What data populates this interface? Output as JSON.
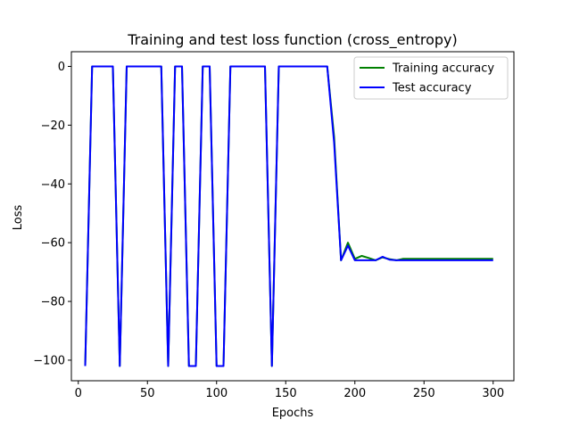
{
  "chart_data": {
    "type": "line",
    "title": "Training and test loss function (cross_entropy)",
    "xlabel": "Epochs",
    "ylabel": "Loss",
    "xlim": [
      -5,
      315
    ],
    "ylim": [
      -107,
      5
    ],
    "xticks": [
      0,
      50,
      100,
      150,
      200,
      250,
      300
    ],
    "xtick_labels": [
      "0",
      "50",
      "100",
      "150",
      "200",
      "250",
      "300"
    ],
    "yticks": [
      0,
      -20,
      -40,
      -60,
      -80,
      -100
    ],
    "ytick_labels": [
      "0",
      "−20",
      "−40",
      "−60",
      "−80",
      "−100"
    ],
    "grid": false,
    "legend_position": "top-right",
    "x": [
      5,
      10,
      15,
      20,
      25,
      30,
      35,
      40,
      45,
      50,
      55,
      60,
      65,
      70,
      75,
      80,
      85,
      90,
      95,
      100,
      105,
      110,
      115,
      120,
      125,
      130,
      135,
      140,
      145,
      150,
      155,
      160,
      165,
      170,
      175,
      180,
      185,
      190,
      195,
      200,
      205,
      210,
      215,
      220,
      225,
      230,
      235,
      240,
      245,
      250,
      255,
      260,
      265,
      270,
      275,
      280,
      285,
      290,
      295,
      300
    ],
    "series": [
      {
        "name": "Training accuracy",
        "color": "#008000",
        "values": [
          -102,
          0,
          0,
          0,
          0,
          -102,
          0,
          0,
          0,
          0,
          0,
          0,
          -102,
          0,
          0,
          -102,
          -102,
          0,
          0,
          -102,
          -102,
          0,
          0,
          0,
          0,
          0,
          0,
          -102,
          0,
          0,
          0,
          0,
          0,
          0,
          0,
          0,
          -24,
          -66,
          -60,
          -65.5,
          -64.5,
          -65.2,
          -66,
          -65,
          -65.6,
          -66,
          -65.5,
          -65.5,
          -65.5,
          -65.5,
          -65.5,
          -65.5,
          -65.5,
          -65.5,
          -65.5,
          -65.5,
          -65.5,
          -65.5,
          -65.5,
          -65.5
        ]
      },
      {
        "name": "Test accuracy",
        "color": "#0000ff",
        "values": [
          -102,
          0,
          0,
          0,
          0,
          -102,
          0,
          0,
          0,
          0,
          0,
          0,
          -102,
          0,
          0,
          -102,
          -102,
          0,
          0,
          -102,
          -102,
          0,
          0,
          0,
          0,
          0,
          0,
          -102,
          0,
          0,
          0,
          0,
          0,
          0,
          0,
          0,
          -26,
          -66,
          -61,
          -66,
          -66,
          -66,
          -66,
          -64.8,
          -65.8,
          -66,
          -66,
          -66,
          -66,
          -66,
          -66,
          -66,
          -66,
          -66,
          -66,
          -66,
          -66,
          -66,
          -66,
          -66
        ]
      }
    ]
  }
}
